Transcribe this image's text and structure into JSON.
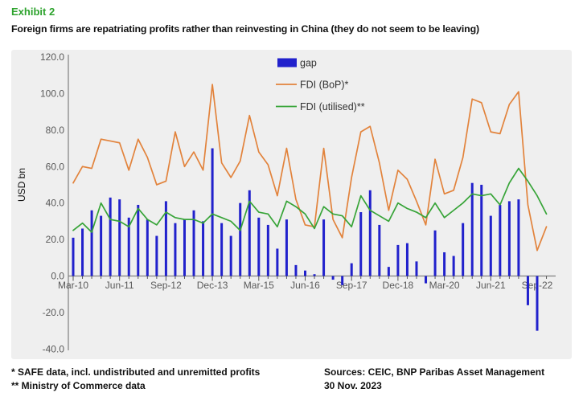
{
  "header": {
    "exhibit": "Exhibit 2",
    "title": "Foreign firms are repatriating profits rather than reinvesting in China (they do not seem to be leaving)"
  },
  "footer": {
    "footnote1": "* SAFE data, incl. undistributed and unremitted profits",
    "footnote2": "** Ministry of Commerce data",
    "sources_line1": "Sources: CEIC, BNP Paribas Asset Management",
    "sources_line2": "30 Nov. 2023"
  },
  "colors": {
    "exhibit_green": "#2ea32e",
    "panel_background": "#efefef",
    "axis_line": "#808080",
    "tick_mark": "#555555",
    "tick_text": "#595959",
    "legend_text": "#333333",
    "ylabel_text": "#111111",
    "bar_blue": "#2121cc",
    "line_orange": "#e2833c",
    "line_green": "#37a438"
  },
  "chart_data": {
    "type": "bar+line",
    "title": "",
    "ylabel": "USD bn",
    "xlabel": "",
    "ylim": [
      -40,
      120
    ],
    "grid": false,
    "legend_position": "top-center",
    "y_ticks": [
      {
        "value": 120,
        "label": "120.0"
      },
      {
        "value": 100,
        "label": "100.0"
      },
      {
        "value": 80,
        "label": "80.0"
      },
      {
        "value": 60,
        "label": "60.0"
      },
      {
        "value": 40,
        "label": "40.0"
      },
      {
        "value": 20,
        "label": "20.0"
      },
      {
        "value": 0,
        "label": "0.0"
      },
      {
        "value": -20,
        "label": "-20.0"
      },
      {
        "value": -40,
        "label": "-40.0"
      }
    ],
    "x_ticks": [
      {
        "index": 0,
        "label": "Mar-10"
      },
      {
        "index": 5,
        "label": "Jun-11"
      },
      {
        "index": 10,
        "label": "Sep-12"
      },
      {
        "index": 15,
        "label": "Dec-13"
      },
      {
        "index": 20,
        "label": "Mar-15"
      },
      {
        "index": 25,
        "label": "Jun-16"
      },
      {
        "index": 30,
        "label": "Sep-17"
      },
      {
        "index": 35,
        "label": "Dec-18"
      },
      {
        "index": 40,
        "label": "Mar-20"
      },
      {
        "index": 45,
        "label": "Jun-21"
      },
      {
        "index": 50,
        "label": "Sep-22"
      }
    ],
    "categories": [
      "Mar-10",
      "Jun-10",
      "Sep-10",
      "Dec-10",
      "Mar-11",
      "Jun-11",
      "Sep-11",
      "Dec-11",
      "Mar-12",
      "Jun-12",
      "Sep-12",
      "Dec-12",
      "Mar-13",
      "Jun-13",
      "Sep-13",
      "Dec-13",
      "Mar-14",
      "Jun-14",
      "Sep-14",
      "Dec-14",
      "Mar-15",
      "Jun-15",
      "Sep-15",
      "Dec-15",
      "Mar-16",
      "Jun-16",
      "Sep-16",
      "Dec-16",
      "Mar-17",
      "Jun-17",
      "Sep-17",
      "Dec-17",
      "Mar-18",
      "Jun-18",
      "Sep-18",
      "Dec-18",
      "Mar-19",
      "Jun-19",
      "Sep-19",
      "Dec-19",
      "Mar-20",
      "Jun-20",
      "Sep-20",
      "Dec-20",
      "Mar-21",
      "Jun-21",
      "Sep-21",
      "Dec-21",
      "Mar-22",
      "Jun-22",
      "Sep-22",
      "Dec-22"
    ],
    "series": [
      {
        "name": "gap",
        "type": "bar",
        "color": "#2121cc",
        "values": [
          21,
          26,
          36,
          33,
          43,
          42,
          32,
          39,
          31,
          22,
          41,
          29,
          31,
          36,
          30,
          70,
          29,
          22,
          40,
          47,
          32,
          28,
          15,
          31,
          6,
          3,
          1,
          31,
          -2,
          -5,
          7,
          35,
          47,
          28,
          5,
          17,
          18,
          8,
          -4,
          25,
          13,
          11,
          29,
          51,
          50,
          33,
          39,
          41,
          42,
          -16,
          -30,
          null
        ]
      },
      {
        "name": "FDI (BoP)*",
        "type": "line",
        "color": "#e2833c",
        "values": [
          51,
          60,
          59,
          75,
          74,
          73,
          58,
          75,
          65,
          50,
          52,
          79,
          60,
          68,
          58,
          105,
          62,
          54,
          63,
          88,
          68,
          61,
          44,
          70,
          42,
          28,
          27,
          70,
          31,
          21,
          54,
          79,
          82,
          62,
          36,
          58,
          53,
          41,
          28,
          64,
          45,
          47,
          65,
          97,
          95,
          79,
          78,
          94,
          101,
          39,
          14,
          27
        ]
      },
      {
        "name": "FDI (utilised)**",
        "type": "line",
        "color": "#37a438",
        "values": [
          25,
          29,
          24,
          40,
          31,
          30,
          27,
          37,
          31,
          28,
          35,
          32,
          31,
          31,
          29,
          34,
          32,
          30,
          25,
          41,
          35,
          34,
          27,
          41,
          38,
          34,
          26,
          38,
          34,
          33,
          27,
          44,
          36,
          33,
          30,
          40,
          37,
          35,
          32,
          40,
          32,
          36,
          40,
          45,
          44,
          45,
          39,
          51,
          59,
          52,
          44,
          34
        ]
      }
    ]
  }
}
